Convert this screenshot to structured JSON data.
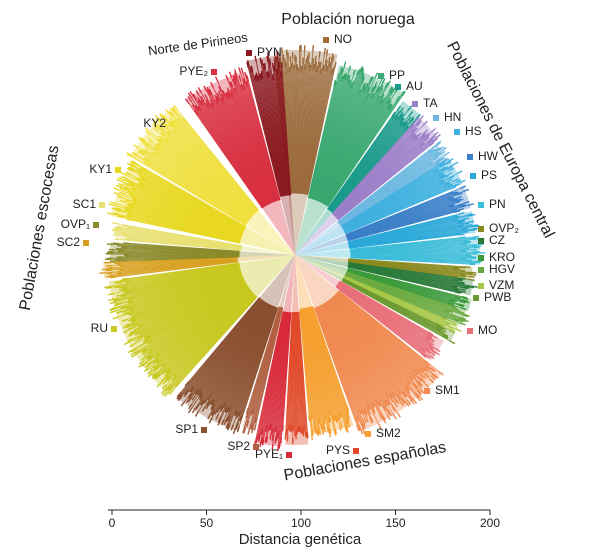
{
  "groups": [
    {
      "label": "Población noruega",
      "color": "#8b4a16"
    },
    {
      "label": "Poblaciones de Europa central",
      "color": "#1aa0a0"
    },
    {
      "label": "Poblaciones españolas",
      "color": "#d02030"
    },
    {
      "label": "Poblaciones escocesas",
      "color": "#b0b000"
    },
    {
      "label": "Norte de Pirineos",
      "color": "#111111"
    }
  ],
  "populations": [
    {
      "label": "NO",
      "color": "#9c6b3c"
    },
    {
      "label": "PP",
      "color": "#3aa870"
    },
    {
      "label": "AU",
      "color": "#1a9a8a"
    },
    {
      "label": "TA",
      "color": "#9b7fc8"
    },
    {
      "label": "HN",
      "color": "#6cb8e0"
    },
    {
      "label": "HS",
      "color": "#3fb0e0"
    },
    {
      "label": "HW",
      "color": "#3a7fc8"
    },
    {
      "label": "PS",
      "color": "#2aa8d8"
    },
    {
      "label": "PN",
      "color": "#3bbcd8"
    },
    {
      "label": "OVP₂",
      "color": "#8a8a20"
    },
    {
      "label": "CZ",
      "color": "#2a7a3a"
    },
    {
      "label": "KRO",
      "color": "#3a9a3a"
    },
    {
      "label": "HGV",
      "color": "#6aaa40"
    },
    {
      "label": "VZM",
      "color": "#a8c84a"
    },
    {
      "label": "PWB",
      "color": "#6a9a30"
    },
    {
      "label": "MO",
      "color": "#e8707a"
    },
    {
      "label": "SM1",
      "color": "#f08a50"
    },
    {
      "label": "SM2",
      "color": "#f5a030"
    },
    {
      "label": "PYS",
      "color": "#e04a2a"
    },
    {
      "label": "PYE₁",
      "color": "#d82a3a"
    },
    {
      "label": "SP2",
      "color": "#b06040"
    },
    {
      "label": "SP1",
      "color": "#8a5030"
    },
    {
      "label": "RU",
      "color": "#c8c820"
    },
    {
      "label": "SC2",
      "color": "#d8a020"
    },
    {
      "label": "OVP₁",
      "color": "#8a8a2a"
    },
    {
      "label": "SC1",
      "color": "#e8e070"
    },
    {
      "label": "KY1",
      "color": "#e8d820"
    },
    {
      "label": "KY2",
      "color": "#f0e040"
    },
    {
      "label": "PYE₂",
      "color": "#d83040"
    },
    {
      "label": "PYN",
      "color": "#8a1a20"
    }
  ],
  "axis": {
    "label": "Distancia genética",
    "xlim": [
      0,
      200
    ],
    "xticks": [
      0,
      50,
      100,
      150,
      200
    ]
  }
}
